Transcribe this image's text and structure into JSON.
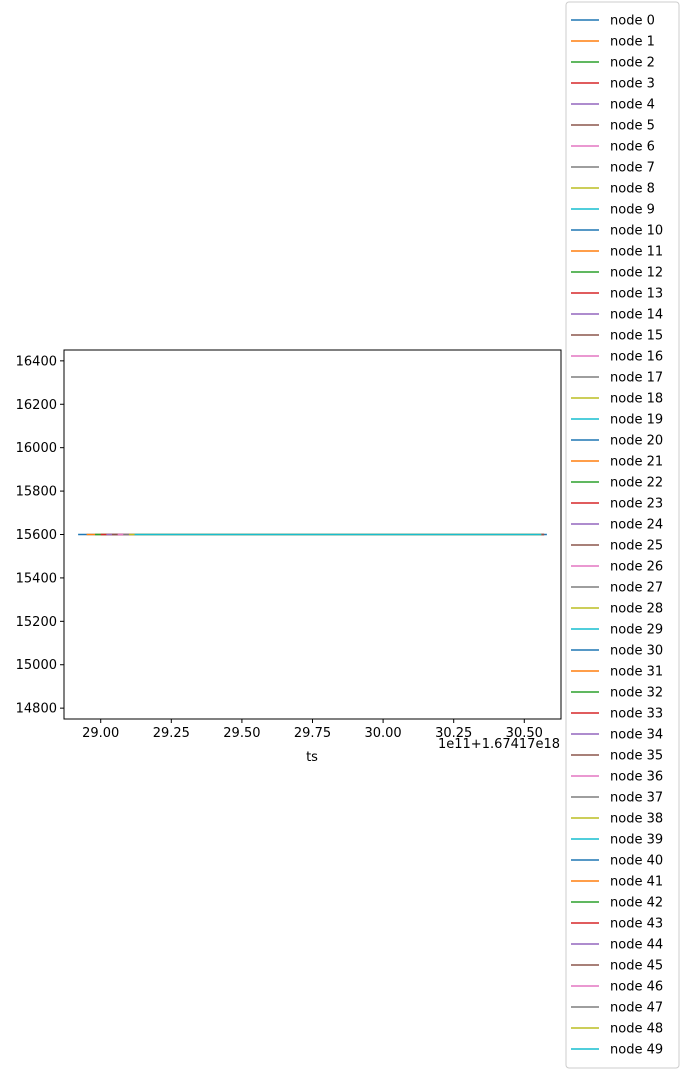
{
  "chart_data": {
    "type": "line",
    "title": "",
    "xlabel": "ts",
    "ylabel": "",
    "x_offset_label": "1e11+1.67417e18",
    "xlim": [
      28.87,
      30.63
    ],
    "ylim": [
      14750,
      16450
    ],
    "x_ticks": [
      {
        "value": 29.0,
        "label": "29.00"
      },
      {
        "value": 29.25,
        "label": "29.25"
      },
      {
        "value": 29.5,
        "label": "29.50"
      },
      {
        "value": 29.75,
        "label": "29.75"
      },
      {
        "value": 30.0,
        "label": "30.00"
      },
      {
        "value": 30.25,
        "label": "30.25"
      },
      {
        "value": 30.5,
        "label": "30.50"
      }
    ],
    "y_ticks": [
      {
        "value": 14800,
        "label": "14800"
      },
      {
        "value": 15000,
        "label": "15000"
      },
      {
        "value": 15200,
        "label": "15200"
      },
      {
        "value": 15400,
        "label": "15400"
      },
      {
        "value": 15600,
        "label": "15600"
      },
      {
        "value": 15800,
        "label": "15800"
      },
      {
        "value": 16000,
        "label": "16000"
      },
      {
        "value": 16200,
        "label": "16200"
      },
      {
        "value": 16400,
        "label": "16400"
      }
    ],
    "grid": false,
    "legend_position": "right",
    "value": 15600,
    "colors": [
      "#1f77b4",
      "#ff7f0e",
      "#2ca02c",
      "#d62728",
      "#9467bd",
      "#8c564b",
      "#e377c2",
      "#7f7f7f",
      "#bcbd22",
      "#17becf"
    ],
    "series": [
      {
        "name": "node 0",
        "x": [
          28.92,
          30.58
        ]
      },
      {
        "name": "node 1",
        "x": [
          28.95,
          30.57
        ]
      },
      {
        "name": "node 2",
        "x": [
          28.98,
          30.57
        ]
      },
      {
        "name": "node 3",
        "x": [
          29.0,
          30.57
        ]
      },
      {
        "name": "node 4",
        "x": [
          29.02,
          30.57
        ]
      },
      {
        "name": "node 5",
        "x": [
          29.04,
          30.57
        ]
      },
      {
        "name": "node 6",
        "x": [
          29.06,
          30.56
        ]
      },
      {
        "name": "node 7",
        "x": [
          29.08,
          30.56
        ]
      },
      {
        "name": "node 8",
        "x": [
          29.1,
          30.56
        ]
      },
      {
        "name": "node 9",
        "x": [
          29.12,
          30.56
        ]
      },
      {
        "name": "node 10",
        "x": [
          29.12,
          30.56
        ]
      },
      {
        "name": "node 11",
        "x": [
          29.12,
          30.56
        ]
      },
      {
        "name": "node 12",
        "x": [
          29.12,
          30.56
        ]
      },
      {
        "name": "node 13",
        "x": [
          29.12,
          30.56
        ]
      },
      {
        "name": "node 14",
        "x": [
          29.12,
          30.56
        ]
      },
      {
        "name": "node 15",
        "x": [
          29.12,
          30.56
        ]
      },
      {
        "name": "node 16",
        "x": [
          29.12,
          30.56
        ]
      },
      {
        "name": "node 17",
        "x": [
          29.12,
          30.56
        ]
      },
      {
        "name": "node 18",
        "x": [
          29.12,
          30.56
        ]
      },
      {
        "name": "node 19",
        "x": [
          29.12,
          30.56
        ]
      },
      {
        "name": "node 20",
        "x": [
          29.12,
          30.56
        ]
      },
      {
        "name": "node 21",
        "x": [
          29.12,
          30.56
        ]
      },
      {
        "name": "node 22",
        "x": [
          29.12,
          30.56
        ]
      },
      {
        "name": "node 23",
        "x": [
          29.12,
          30.56
        ]
      },
      {
        "name": "node 24",
        "x": [
          29.12,
          30.56
        ]
      },
      {
        "name": "node 25",
        "x": [
          29.12,
          30.56
        ]
      },
      {
        "name": "node 26",
        "x": [
          29.12,
          30.56
        ]
      },
      {
        "name": "node 27",
        "x": [
          29.12,
          30.56
        ]
      },
      {
        "name": "node 28",
        "x": [
          29.12,
          30.56
        ]
      },
      {
        "name": "node 29",
        "x": [
          29.12,
          30.56
        ]
      },
      {
        "name": "node 30",
        "x": [
          29.12,
          30.56
        ]
      },
      {
        "name": "node 31",
        "x": [
          29.12,
          30.56
        ]
      },
      {
        "name": "node 32",
        "x": [
          29.12,
          30.56
        ]
      },
      {
        "name": "node 33",
        "x": [
          29.12,
          30.56
        ]
      },
      {
        "name": "node 34",
        "x": [
          29.12,
          30.56
        ]
      },
      {
        "name": "node 35",
        "x": [
          29.12,
          30.56
        ]
      },
      {
        "name": "node 36",
        "x": [
          29.12,
          30.56
        ]
      },
      {
        "name": "node 37",
        "x": [
          29.12,
          30.56
        ]
      },
      {
        "name": "node 38",
        "x": [
          29.12,
          30.56
        ]
      },
      {
        "name": "node 39",
        "x": [
          29.12,
          30.56
        ]
      },
      {
        "name": "node 40",
        "x": [
          29.12,
          30.56
        ]
      },
      {
        "name": "node 41",
        "x": [
          29.12,
          30.56
        ]
      },
      {
        "name": "node 42",
        "x": [
          29.12,
          30.56
        ]
      },
      {
        "name": "node 43",
        "x": [
          29.12,
          30.56
        ]
      },
      {
        "name": "node 44",
        "x": [
          29.12,
          30.56
        ]
      },
      {
        "name": "node 45",
        "x": [
          29.12,
          30.56
        ]
      },
      {
        "name": "node 46",
        "x": [
          29.12,
          30.56
        ]
      },
      {
        "name": "node 47",
        "x": [
          29.12,
          30.56
        ]
      },
      {
        "name": "node 48",
        "x": [
          29.12,
          30.56
        ]
      },
      {
        "name": "node 49",
        "x": [
          29.12,
          30.56
        ]
      }
    ]
  }
}
